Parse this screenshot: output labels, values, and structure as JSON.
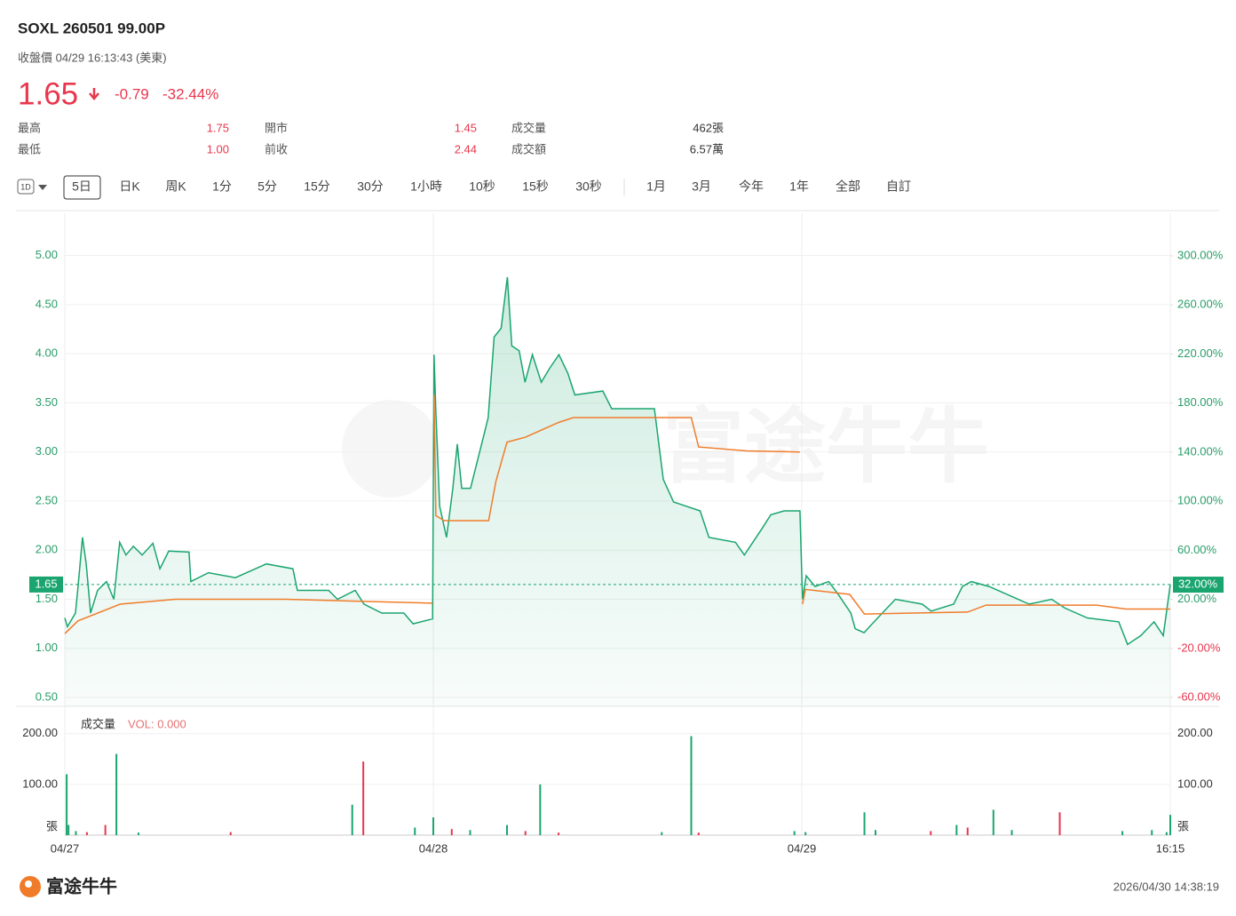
{
  "header": {
    "title": "SOXL 260501 99.00P",
    "subtitle": "收盤價 04/29 16:13:43 (美東)",
    "price": "1.65",
    "change": "-0.79",
    "change_pct": "-32.44%",
    "stats": [
      [
        {
          "label": "最高",
          "value": "1.75"
        },
        {
          "label": "開市",
          "value": "1.45"
        },
        {
          "label": "成交量",
          "value": "462張"
        }
      ],
      [
        {
          "label": "最低",
          "value": "1.00"
        },
        {
          "label": "前收",
          "value": "2.44"
        },
        {
          "label": "成交額",
          "value": "6.57萬"
        }
      ]
    ]
  },
  "toolbar": {
    "interval_icon": "1D",
    "tabs": [
      "5日",
      "日K",
      "周K",
      "1分",
      "5分",
      "15分",
      "30分",
      "1小時",
      "10秒",
      "15秒",
      "30秒",
      "1月",
      "3月",
      "今年",
      "1年",
      "全部",
      "自訂"
    ],
    "selected": 0
  },
  "chart_data": {
    "type": "line",
    "grid": true,
    "watermark": "富途牛牛",
    "x": [
      0,
      0.007,
      0.029,
      0.036,
      0.048,
      0.058,
      0.07,
      0.089,
      0.113,
      0.133,
      0.149,
      0.166,
      0.186,
      0.21,
      0.239,
      0.258,
      0.282,
      0.337,
      0.342,
      0.39,
      0.463,
      0.547,
      0.619,
      0.631,
      0.716,
      0.74,
      0.788,
      0.812,
      0.86,
      0.92,
      0.945,
      0.998,
      1.002,
      1.007,
      1.017,
      1.036,
      1.053,
      1.065,
      1.077,
      1.101,
      1.137,
      1.149,
      1.165,
      1.184,
      1.201,
      1.213,
      1.233,
      1.249,
      1.269,
      1.293,
      1.317,
      1.341,
      1.365,
      1.384,
      1.46,
      1.484,
      1.6,
      1.624,
      1.652,
      1.724,
      1.748,
      1.82,
      1.844,
      1.892,
      1.916,
      1.952,
      1.995,
      2.002,
      2.012,
      2.036,
      2.073,
      2.097,
      2.133,
      2.145,
      2.169,
      2.206,
      2.254,
      2.327,
      2.351,
      2.412,
      2.436,
      2.46,
      2.508,
      2.617,
      2.678,
      2.714,
      2.775,
      2.86,
      2.884,
      2.92,
      2.956,
      2.981,
      3.0
    ],
    "series": [
      {
        "name": "price",
        "color": "#1aa56f",
        "values": [
          1.31,
          1.22,
          1.36,
          1.63,
          2.13,
          1.86,
          1.36,
          1.59,
          1.68,
          1.5,
          2.08,
          1.95,
          2.04,
          1.95,
          2.07,
          1.81,
          1.99,
          1.98,
          1.68,
          1.77,
          1.72,
          1.86,
          1.81,
          1.59,
          1.59,
          1.5,
          1.59,
          1.45,
          1.36,
          1.36,
          1.25,
          1.3,
          3.99,
          3.4,
          2.45,
          2.13,
          2.63,
          3.08,
          2.63,
          2.63,
          3.17,
          3.35,
          4.17,
          4.26,
          4.78,
          4.08,
          4.03,
          3.71,
          3.99,
          3.71,
          3.86,
          3.99,
          3.8,
          3.58,
          3.62,
          3.44,
          3.44,
          2.72,
          2.49,
          2.4,
          2.13,
          2.08,
          1.95,
          2.22,
          2.36,
          2.4,
          2.4,
          1.5,
          1.74,
          1.63,
          1.68,
          1.56,
          1.36,
          1.2,
          1.16,
          1.31,
          1.5,
          1.45,
          1.38,
          1.45,
          1.63,
          1.68,
          1.63,
          1.45,
          1.5,
          1.41,
          1.31,
          1.27,
          1.04,
          1.13,
          1.27,
          1.13,
          1.65
        ]
      }
    ],
    "avg": {
      "color": "#f07c2a",
      "x": [
        0,
        0.036,
        0.15,
        0.3,
        0.6,
        0.8,
        0.998,
        null,
        1.002,
        1.007,
        1.03,
        1.15,
        1.17,
        1.2,
        1.25,
        1.34,
        1.38,
        1.6,
        1.7,
        1.72,
        1.85,
        1.995,
        null,
        2.002,
        2.01,
        2.13,
        2.17,
        2.45,
        2.5,
        2.8,
        2.88,
        3.0
      ],
      "values": [
        1.15,
        1.28,
        1.45,
        1.5,
        1.5,
        1.48,
        1.46,
        null,
        3.58,
        2.35,
        2.3,
        2.3,
        2.7,
        3.1,
        3.15,
        3.3,
        3.35,
        3.35,
        3.35,
        3.05,
        3.01,
        3.0,
        null,
        1.45,
        1.6,
        1.55,
        1.35,
        1.37,
        1.44,
        1.44,
        1.4,
        1.4
      ]
    },
    "xlim": [
      0,
      3
    ],
    "xticks": [
      {
        "value": 0,
        "label": "04/27"
      },
      {
        "value": 1,
        "label": "04/28"
      },
      {
        "value": 2,
        "label": "04/29"
      },
      {
        "value": 3,
        "label": "16:15"
      }
    ],
    "ylim": [
      0.41,
      5.43
    ],
    "yticks": [
      {
        "value": 0.5,
        "label": "0.50"
      },
      {
        "value": 1,
        "label": "1.00"
      },
      {
        "value": 1.5,
        "label": "1.50"
      },
      {
        "value": 2,
        "label": "2.00"
      },
      {
        "value": 2.5,
        "label": "2.50"
      },
      {
        "value": 3,
        "label": "3.00"
      },
      {
        "value": 3.5,
        "label": "3.50"
      },
      {
        "value": 4,
        "label": "4.00"
      },
      {
        "value": 4.5,
        "label": "4.50"
      },
      {
        "value": 5,
        "label": "5.00"
      }
    ],
    "y2lim": [
      -67.2,
      334.8
    ],
    "y2ticks": [
      {
        "value": -60,
        "label": "-60.00%"
      },
      {
        "value": -20,
        "label": "-20.00%"
      },
      {
        "value": 20,
        "label": "20.00%"
      },
      {
        "value": 60,
        "label": "60.00%"
      },
      {
        "value": 100,
        "label": "100.00%"
      },
      {
        "value": 140,
        "label": "140.00%"
      },
      {
        "value": 180,
        "label": "180.00%"
      },
      {
        "value": 220,
        "label": "220.00%"
      },
      {
        "value": 260,
        "label": "260.00%"
      },
      {
        "value": 300,
        "label": "300.00%"
      }
    ],
    "last_price": {
      "value": 1.65,
      "label": "1.65"
    },
    "last_pct": {
      "value": 32,
      "label": "32.00%"
    },
    "volume": {
      "title": "成交量",
      "indicator": "VOL: 0.000",
      "unit": "張",
      "ylim": [
        0,
        245
      ],
      "yticks": [
        {
          "value": 100,
          "label": "100.00"
        },
        {
          "value": 200,
          "label": "200.00"
        }
      ],
      "x": [
        0.005,
        0.01,
        0.03,
        0.06,
        0.11,
        0.14,
        0.2,
        0.45,
        0.78,
        0.81,
        0.95,
        1.0,
        1.05,
        1.1,
        1.2,
        1.25,
        1.29,
        1.34,
        1.62,
        1.7,
        1.72,
        1.98,
        2.01,
        2.17,
        2.2,
        2.35,
        2.42,
        2.45,
        2.52,
        2.57,
        2.7,
        2.87,
        2.95,
        2.99,
        3.0
      ],
      "values": [
        120,
        20,
        8,
        6,
        20,
        160,
        5,
        6,
        60,
        145,
        15,
        35,
        12,
        10,
        20,
        8,
        100,
        5,
        6,
        195,
        5,
        8,
        6,
        45,
        10,
        8,
        20,
        15,
        50,
        10,
        45,
        8,
        10,
        6,
        40
      ],
      "colors": [
        "#1aa56f",
        "#1aa56f",
        "#1aa56f",
        "#e8364d",
        "#e8364d",
        "#1aa56f",
        "#1aa56f",
        "#e8364d",
        "#1aa56f",
        "#e8364d",
        "#1aa56f",
        "#1aa56f",
        "#e8364d",
        "#1aa56f",
        "#1aa56f",
        "#e8364d",
        "#1aa56f",
        "#e8364d",
        "#1aa56f",
        "#1aa56f",
        "#e8364d",
        "#1aa56f",
        "#1aa56f",
        "#1aa56f",
        "#1aa56f",
        "#e8364d",
        "#1aa56f",
        "#e8364d",
        "#1aa56f",
        "#1aa56f",
        "#e8364d",
        "#1aa56f",
        "#1aa56f",
        "#1aa56f",
        "#1aa56f"
      ]
    }
  },
  "footer": {
    "logo": "富途牛牛",
    "timestamp": "2026/04/30 14:38:19"
  }
}
